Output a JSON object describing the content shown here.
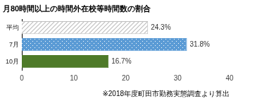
{
  "chart_data": {
    "type": "bar",
    "orientation": "horizontal",
    "title": "月80時間以上の時間外在校等時間数の割合",
    "annotation": "※2018年度町田市勤務実態調査より算出",
    "categories": [
      "平均",
      "7月",
      "10月"
    ],
    "values": [
      24.3,
      31.8,
      16.7
    ],
    "value_labels": [
      "24.3%",
      "31.8%",
      "16.7%"
    ],
    "colors": [
      "#bfbfbf",
      "#5b9bd5",
      "#4e7a28"
    ],
    "xlim": [
      0,
      40
    ],
    "xticks": [
      0,
      10,
      20,
      30,
      40
    ],
    "grid": false,
    "data_labels": true
  }
}
